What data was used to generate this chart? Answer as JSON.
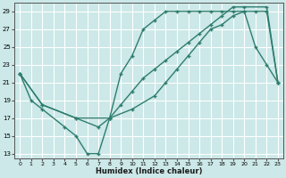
{
  "xlabel": "Humidex (Indice chaleur)",
  "bg_color": "#cce8e8",
  "grid_color": "#ffffff",
  "line_color": "#2e7d6e",
  "xlim": [
    -0.5,
    23.5
  ],
  "ylim": [
    12.5,
    30
  ],
  "xticks": [
    0,
    1,
    2,
    3,
    4,
    5,
    6,
    7,
    8,
    9,
    10,
    11,
    12,
    13,
    14,
    15,
    16,
    17,
    18,
    19,
    20,
    21,
    22,
    23
  ],
  "yticks": [
    13,
    15,
    17,
    19,
    21,
    23,
    25,
    27,
    29
  ],
  "line1_x": [
    0,
    1,
    2,
    4,
    5,
    6,
    7,
    8,
    9,
    10,
    11,
    12,
    13,
    14,
    15,
    16,
    17,
    18,
    19,
    20,
    21,
    22,
    23
  ],
  "line1_y": [
    22,
    19,
    18,
    16,
    15,
    13,
    13,
    17,
    22,
    24,
    27,
    28,
    29,
    29,
    29,
    29,
    29,
    29,
    29,
    29,
    25,
    23,
    21
  ],
  "line2_x": [
    0,
    2,
    5,
    8,
    10,
    12,
    13,
    14,
    15,
    16,
    17,
    18,
    19,
    20,
    21,
    22,
    23
  ],
  "line2_y": [
    22,
    18.5,
    17,
    17,
    18,
    19.5,
    21,
    22.5,
    24,
    25.5,
    27,
    27.5,
    28.5,
    29,
    29,
    29,
    21
  ],
  "line3_x": [
    0,
    2,
    5,
    7,
    8,
    9,
    10,
    11,
    12,
    13,
    14,
    15,
    16,
    17,
    18,
    19,
    20,
    22,
    23
  ],
  "line3_y": [
    22,
    18.5,
    17,
    16,
    17,
    18.5,
    20,
    21.5,
    22.5,
    23.5,
    24.5,
    25.5,
    26.5,
    27.5,
    28.5,
    29.5,
    29.5,
    29.5,
    21
  ]
}
